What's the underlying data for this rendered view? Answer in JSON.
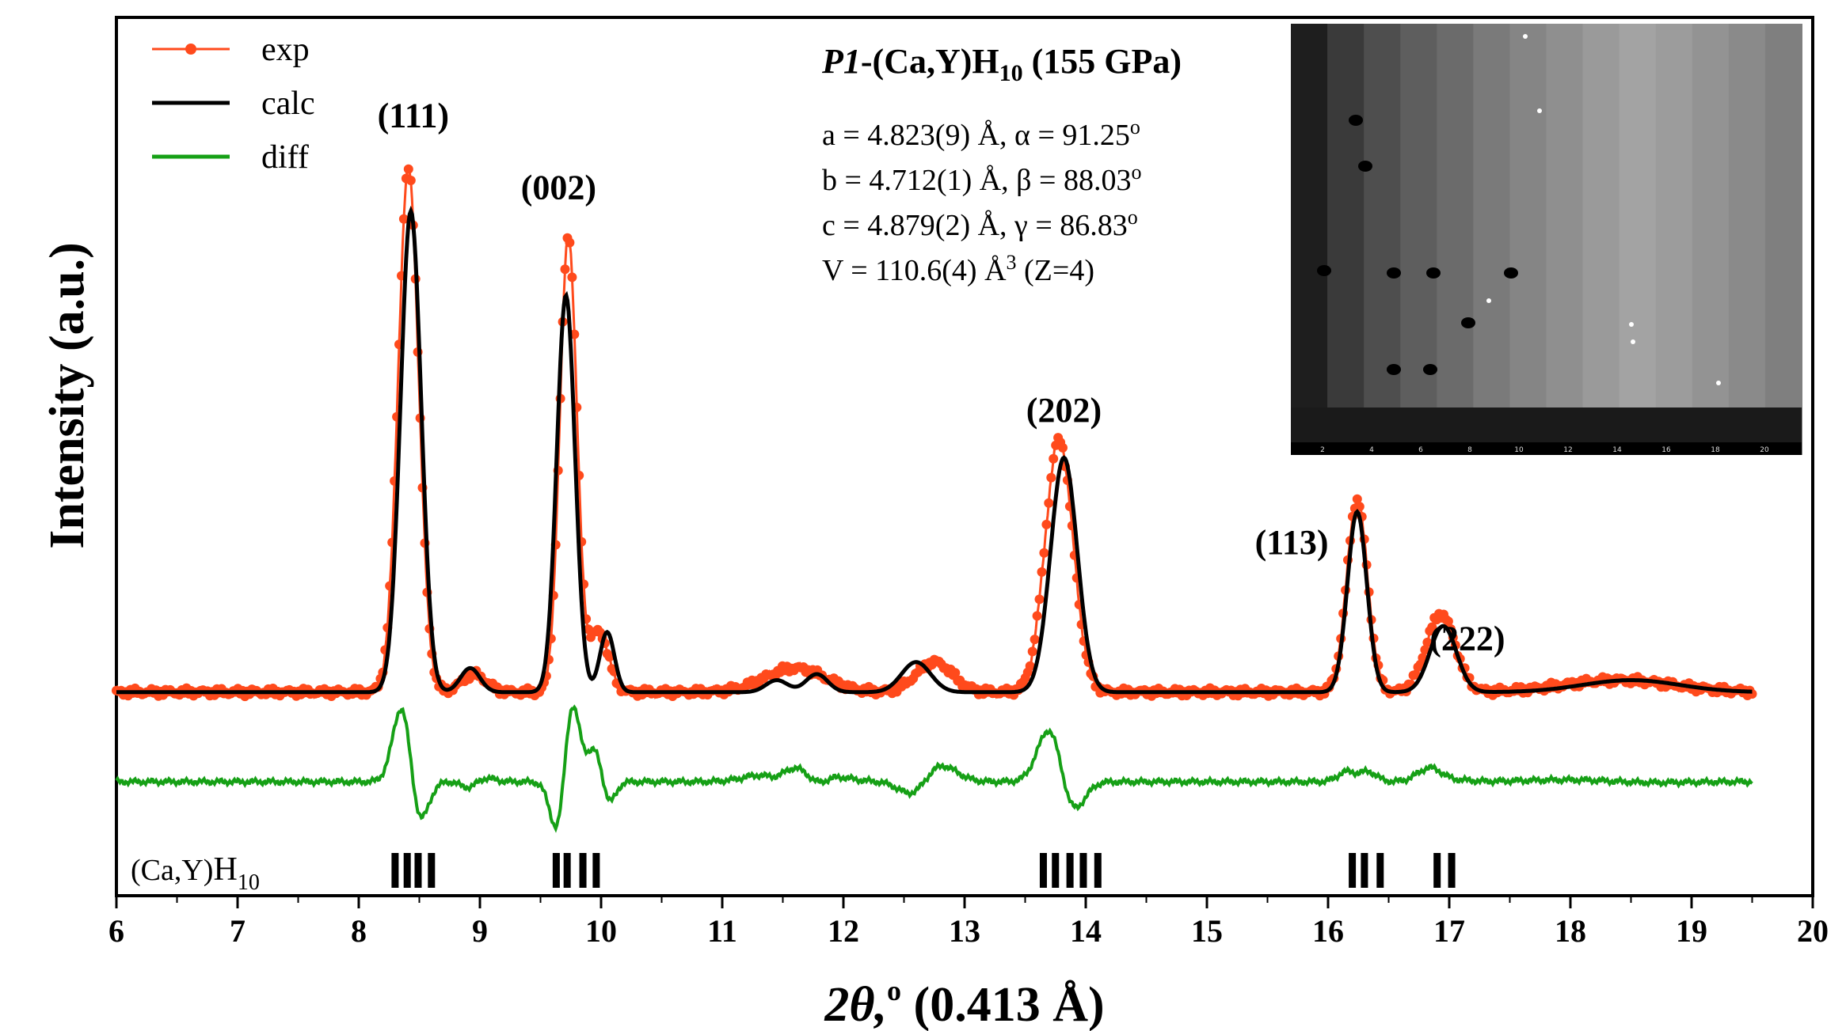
{
  "chart_data": {
    "type": "line",
    "xlabel_italic": "2θ,",
    "xlabel_sup": "o",
    "xlabel_rest": " (0.413 Å)",
    "ylabel": "Intensity (a.u.)",
    "xlim": [
      6,
      20
    ],
    "xticks": [
      6,
      7,
      8,
      9,
      10,
      11,
      12,
      13,
      14,
      15,
      16,
      17,
      18,
      19,
      20
    ],
    "x_start": 6.0,
    "x_end": 19.5,
    "series": [
      {
        "name": "exp",
        "color": "#ff4a1c",
        "marker": "dot"
      },
      {
        "name": "calc",
        "color": "#000000"
      },
      {
        "name": "diff",
        "color": "#16a016"
      }
    ],
    "baseline_level": 0.02,
    "peaks_calc": [
      {
        "x": 8.43,
        "height": 0.8,
        "width": 0.085
      },
      {
        "x": 8.92,
        "height": 0.04,
        "width": 0.08
      },
      {
        "x": 9.71,
        "height": 0.66,
        "width": 0.075
      },
      {
        "x": 10.05,
        "height": 0.1,
        "width": 0.06
      },
      {
        "x": 11.45,
        "height": 0.02,
        "width": 0.09
      },
      {
        "x": 11.78,
        "height": 0.03,
        "width": 0.09
      },
      {
        "x": 12.6,
        "height": 0.05,
        "width": 0.12
      },
      {
        "x": 13.82,
        "height": 0.39,
        "width": 0.11
      },
      {
        "x": 16.24,
        "height": 0.3,
        "width": 0.08
      },
      {
        "x": 16.95,
        "height": 0.11,
        "width": 0.11
      },
      {
        "x": 18.5,
        "height": 0.02,
        "width": 0.4
      }
    ],
    "peaks_exp": [
      {
        "x": 8.41,
        "height": 0.87,
        "width": 0.085
      },
      {
        "x": 8.95,
        "height": 0.03,
        "width": 0.1
      },
      {
        "x": 9.73,
        "height": 0.76,
        "width": 0.07
      },
      {
        "x": 9.98,
        "height": 0.1,
        "width": 0.08
      },
      {
        "x": 11.6,
        "height": 0.04,
        "width": 0.25
      },
      {
        "x": 12.75,
        "height": 0.05,
        "width": 0.15
      },
      {
        "x": 13.78,
        "height": 0.42,
        "width": 0.115
      },
      {
        "x": 16.24,
        "height": 0.32,
        "width": 0.085
      },
      {
        "x": 16.93,
        "height": 0.13,
        "width": 0.12
      },
      {
        "x": 18.4,
        "height": 0.02,
        "width": 0.45
      }
    ],
    "peak_labels": [
      {
        "text": "(111)",
        "x": 8.45,
        "y": 0.96
      },
      {
        "text": "(002)",
        "x": 9.65,
        "y": 0.84
      },
      {
        "text": "(202)",
        "x": 13.82,
        "y": 0.47
      },
      {
        "text": "(113)",
        "x": 15.7,
        "y": 0.25
      },
      {
        "text": "(222)",
        "x": 17.15,
        "y": 0.09
      }
    ],
    "bragg_phase": "(Ca,Y)",
    "bragg_phase_sub": "10",
    "bragg_ticks": [
      8.3,
      8.4,
      8.49,
      8.6,
      9.63,
      9.72,
      9.85,
      9.96,
      13.65,
      13.75,
      13.87,
      13.98,
      14.1,
      16.2,
      16.3,
      16.43,
      16.9,
      17.02
    ],
    "annotation": {
      "title_italic": "P1",
      "title_rest": "-(Ca,Y)H",
      "title_sub": "10",
      "title_tail": " (155 GPa)",
      "line_a": "a = 4.823(9) Å,  α = 91.25",
      "line_b": "b = 4.712(1) Å,  β =  88.03",
      "line_c": "c = 4.879(2) Å,  γ =  86.83",
      "deg": "o",
      "line_v_pre": "V = 110.6(4) Å",
      "line_v_sup": "3",
      "line_v_post": " (Z=4)"
    },
    "inset_axis_labels": [
      "2",
      "4",
      "6",
      "8",
      "10",
      "12",
      "14",
      "16",
      "18",
      "20"
    ]
  }
}
